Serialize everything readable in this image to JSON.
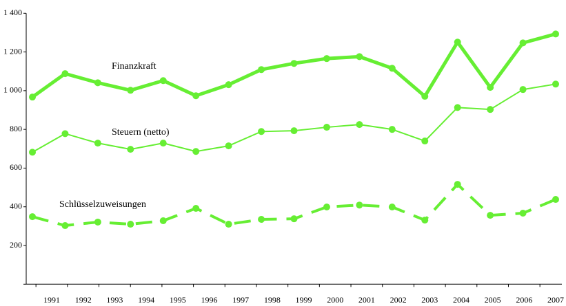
{
  "chart_data": {
    "type": "line",
    "categories": [
      "1991",
      "1992",
      "1993",
      "1994",
      "1995",
      "1996",
      "1997",
      "1998",
      "1999",
      "2000",
      "2001",
      "2002",
      "2003",
      "2004",
      "2005",
      "2006",
      "2007"
    ],
    "series": [
      {
        "name": "Finanzkraft",
        "color": "#66ee33",
        "values": [
          967,
          1088,
          1041,
          1002,
          1052,
          974,
          1031,
          1109,
          1141,
          1166,
          1176,
          1116,
          971,
          1251,
          1017,
          1247,
          1293
        ]
      },
      {
        "name": "Steuern (netto)",
        "color": "#66ee33",
        "values": [
          682,
          778,
          729,
          697,
          729,
          686,
          715,
          789,
          793,
          811,
          825,
          800,
          740,
          913,
          903,
          1006,
          1034
        ]
      },
      {
        "name": "Schlüsselzuweisungen",
        "color": "#66ee33",
        "values": [
          349,
          303,
          321,
          310,
          328,
          392,
          310,
          335,
          338,
          399,
          409,
          399,
          331,
          516,
          356,
          367,
          438
        ]
      }
    ],
    "ylim": [
      0,
      1400
    ],
    "yticks": [
      200,
      400,
      600,
      800,
      {
        "value": 1000,
        "label": "1 000"
      },
      {
        "value": 1200,
        "label": "1 200"
      },
      {
        "value": 1400,
        "label": "1 400"
      }
    ]
  }
}
